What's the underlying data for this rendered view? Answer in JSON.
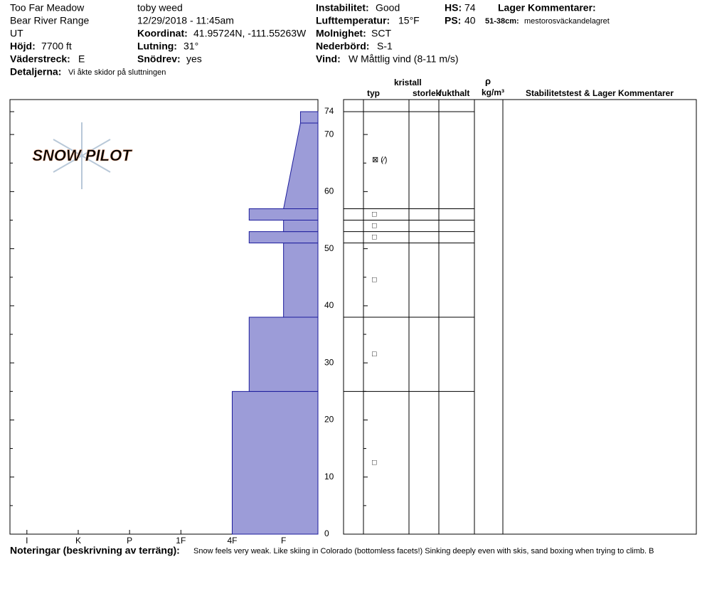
{
  "header": {
    "location": "Too Far Meadow",
    "range": "Bear River Range",
    "state": "UT",
    "elevation": {
      "label": "Höjd:",
      "value": "7700 ft"
    },
    "aspect": {
      "label": "Väderstreck:",
      "value": "E"
    },
    "details": {
      "label": "Detaljerna:",
      "value": "Vi åkte skidor på sluttningen"
    },
    "observer": "toby weed",
    "datetime": "12/29/2018 - 11:45am",
    "coordinates": {
      "label": "Koordinat:",
      "value": "41.95724N, -111.55263W"
    },
    "slope": {
      "label": "Lutning:",
      "value": "31°"
    },
    "wind_loading": {
      "label": "Snödrev:",
      "value": "yes"
    },
    "stability": {
      "label": "Instabilitet:",
      "value": "Good"
    },
    "air_temp": {
      "label": "Lufttemperatur:",
      "value": "15°F"
    },
    "sky": {
      "label": "Molnighet:",
      "value": "SCT"
    },
    "precip": {
      "label": "Nederbörd:",
      "value": "S-1"
    },
    "wind": {
      "label": "Vind:",
      "value": "W Måttlig vind (8-11 m/s)"
    },
    "hs": {
      "label": "HS:",
      "value": "74"
    },
    "ps": {
      "label": "PS:",
      "value": "40"
    },
    "layer_comments": {
      "label": "Lager Kommentarer:",
      "items": [
        {
          "range": "51-38cm:",
          "text": "mestorosväckandelagret"
        }
      ]
    }
  },
  "logo": "SNOW PILOT",
  "chart_data": {
    "type": "hardness-profile",
    "ylim": [
      0,
      74
    ],
    "yticks": [
      0,
      10,
      20,
      30,
      40,
      50,
      60,
      70,
      74
    ],
    "yminor_ticks": [
      5,
      15,
      25,
      35,
      45,
      55,
      65
    ],
    "xlim": [
      6.33,
      0.33
    ],
    "xticks": [
      {
        "value": 6,
        "label": "I"
      },
      {
        "value": 5,
        "label": "K"
      },
      {
        "value": 4,
        "label": "P"
      },
      {
        "value": 3,
        "label": "1F"
      },
      {
        "value": 2,
        "label": "4F"
      },
      {
        "value": 1,
        "label": "F"
      }
    ],
    "color": "#9c9cd8",
    "layers": [
      {
        "bottom": 0,
        "top": 25,
        "hardness": 2
      },
      {
        "bottom": 25,
        "top": 38,
        "hardness": 1.67
      },
      {
        "bottom": 38,
        "top": 51,
        "hardness": 1
      },
      {
        "bottom": 51,
        "top": 53,
        "hardness": 1.67
      },
      {
        "bottom": 53,
        "top": 55,
        "hardness": 1
      },
      {
        "bottom": 55,
        "top": 57,
        "hardness": 1.67
      },
      {
        "bottom": 57,
        "top": 72,
        "hardness": 1,
        "hardness_top": 0.67
      },
      {
        "bottom": 72,
        "top": 74,
        "hardness": 0.67
      }
    ],
    "table_headers": {
      "type": "typ",
      "crystal": "kristall",
      "size": "storlek",
      "moisture": "fukthalt",
      "rho": "ρ",
      "density_unit": "kg/m³",
      "comments": "Stabilitetstest & Lager Kommentarer"
    },
    "table_boundaries": [
      74,
      57,
      55,
      53,
      51,
      38,
      25
    ],
    "grains": [
      {
        "depth": 65.5,
        "symbol": "⊠ (⁄)"
      },
      {
        "depth": 56,
        "symbol": "□"
      },
      {
        "depth": 54,
        "symbol": "□"
      },
      {
        "depth": 52,
        "symbol": "□"
      },
      {
        "depth": 44.5,
        "symbol": "□"
      },
      {
        "depth": 31.5,
        "symbol": "□"
      },
      {
        "depth": 12.5,
        "symbol": "□"
      }
    ]
  },
  "notes": {
    "label": "Noteringar (beskrivning av terräng):",
    "text": "Snow feels very weak.  Like skiing in Colorado (bottomless facets!)  Sinking deeply even with skis, sand boxing when trying to climb.  B"
  }
}
